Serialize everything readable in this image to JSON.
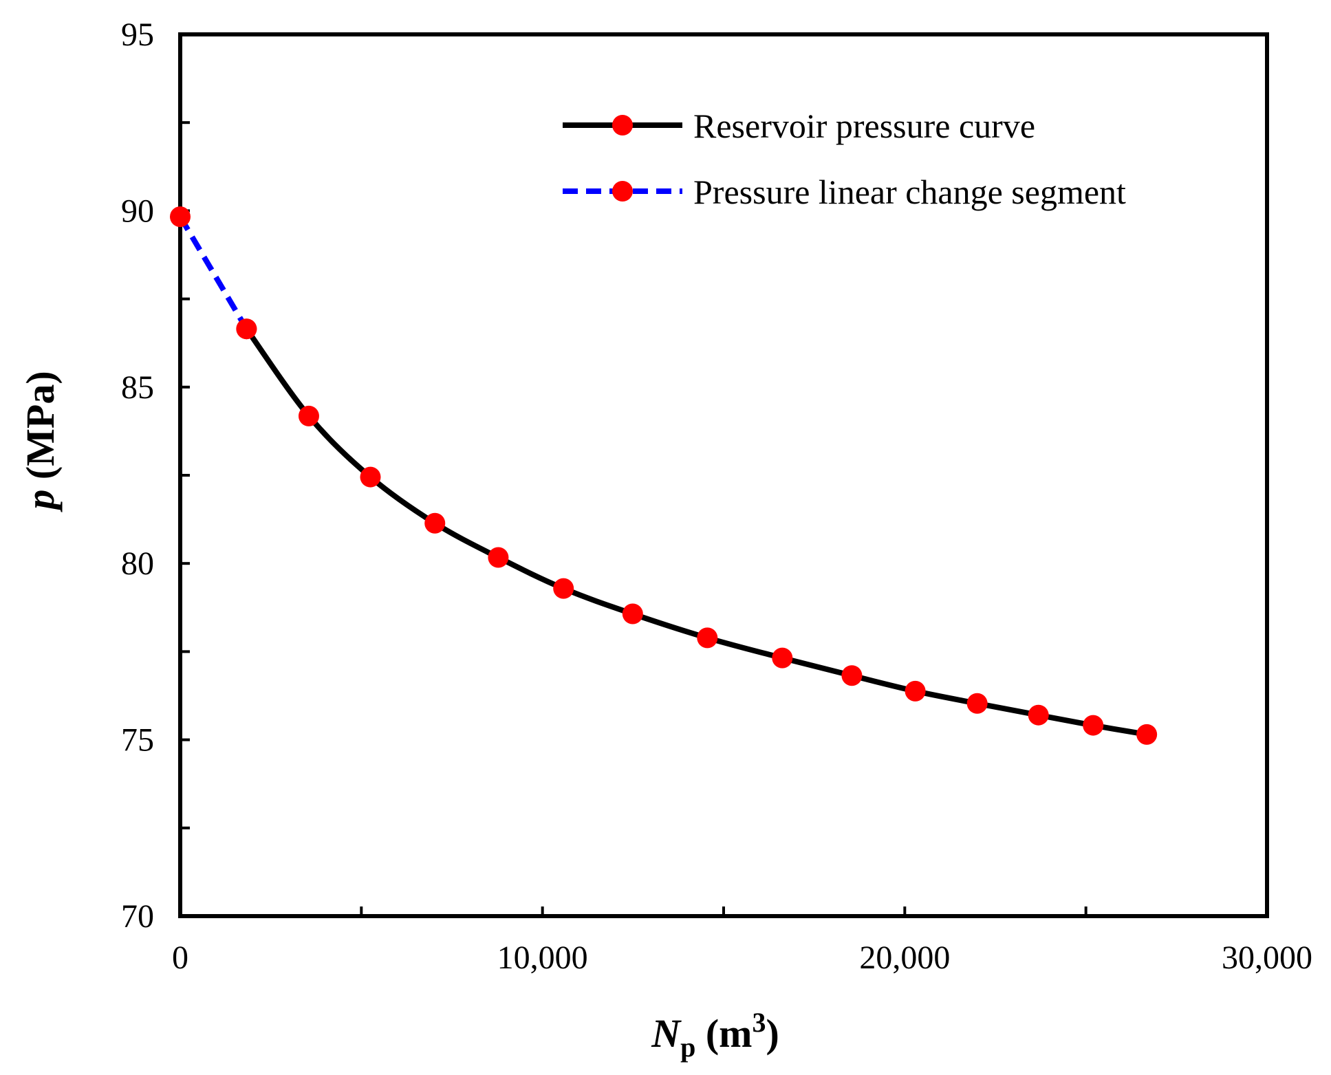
{
  "chart_data": {
    "type": "line",
    "title": "",
    "xlabel": {
      "symbol": "N",
      "subscript": "p",
      "unit_open": " (m",
      "unit_sup": "3",
      "unit_close": ")"
    },
    "ylabel": {
      "symbol": "p",
      "unit": " (MPa)"
    },
    "xlim": [
      0,
      30000
    ],
    "ylim": [
      70,
      95
    ],
    "x_ticks": [
      0,
      10000,
      20000,
      30000
    ],
    "x_tick_labels": [
      "0",
      "10,000",
      "20,000",
      "30,000"
    ],
    "x_minor_ticks": [
      5000,
      15000,
      25000
    ],
    "y_ticks": [
      70,
      75,
      80,
      85,
      90,
      95
    ],
    "y_tick_labels": [
      "70",
      "75",
      "80",
      "85",
      "90",
      "95"
    ],
    "y_minor_ticks": [
      72.5,
      77.5,
      82.5,
      87.5,
      92.5
    ],
    "grid": false,
    "legend_position": "top-right",
    "series": [
      {
        "name": "Reservoir pressure curve",
        "line_color": "#000000",
        "line_style": "solid",
        "marker_color": "#ff0000",
        "x": [
          1830,
          3550,
          5250,
          7030,
          8780,
          10580,
          12490,
          14550,
          16620,
          18540,
          20290,
          22000,
          23690,
          25200,
          26680
        ],
        "y": [
          86.65,
          84.18,
          82.45,
          81.14,
          80.17,
          79.29,
          78.57,
          77.89,
          77.32,
          76.82,
          76.38,
          76.03,
          75.7,
          75.41,
          75.15
        ]
      },
      {
        "name": "Pressure linear change segment",
        "line_color": "#0000ff",
        "line_style": "dashed",
        "marker_color": "#ff0000",
        "x": [
          0,
          1830
        ],
        "y": [
          89.83,
          86.65
        ]
      }
    ]
  }
}
